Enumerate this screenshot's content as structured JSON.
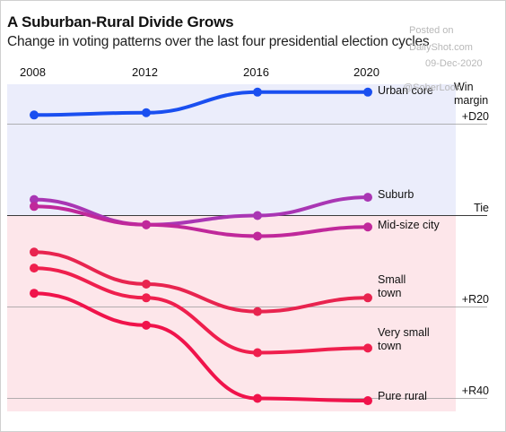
{
  "watermark": {
    "posted_on": "Posted on",
    "site": "DailyShot.com",
    "date": "09-Dec-2020",
    "handle": "@SoberLook"
  },
  "chart_data": {
    "type": "line",
    "title": "A Suburban-Rural Divide Grows",
    "subtitle": "Change in voting patterns over the last four presidential election cycles",
    "x": [
      "2008",
      "2012",
      "2016",
      "2020"
    ],
    "ylabel": "Win margin",
    "y_ticks": [
      "+D20",
      "Tie",
      "+R20",
      "+R40"
    ],
    "ylim": [
      -46,
      30
    ],
    "grid": true,
    "series": [
      {
        "name": "Urban core",
        "values": [
          22,
          22.5,
          27,
          27
        ],
        "color": "#1a4ff0"
      },
      {
        "name": "Suburb",
        "values": [
          3.5,
          -2,
          0,
          4
        ],
        "color": "#a936b4"
      },
      {
        "name": "Mid-size city",
        "values": [
          2,
          -2,
          -4.5,
          -2.5
        ],
        "color": "#c0289b"
      },
      {
        "name": "Small town",
        "values": [
          -8,
          -15,
          -21,
          -18
        ],
        "color": "#e8244f"
      },
      {
        "name": "Very small town",
        "values": [
          -11.5,
          -18,
          -30,
          -29
        ],
        "color": "#ef1f4d"
      },
      {
        "name": "Pure rural",
        "values": [
          -17,
          -24,
          -40,
          -40.5
        ],
        "color": "#f0134b"
      }
    ],
    "colors": {
      "dem_band": "#ebedfb",
      "rep_band": "#fde6ea",
      "grid": "#3a3a3a"
    }
  }
}
